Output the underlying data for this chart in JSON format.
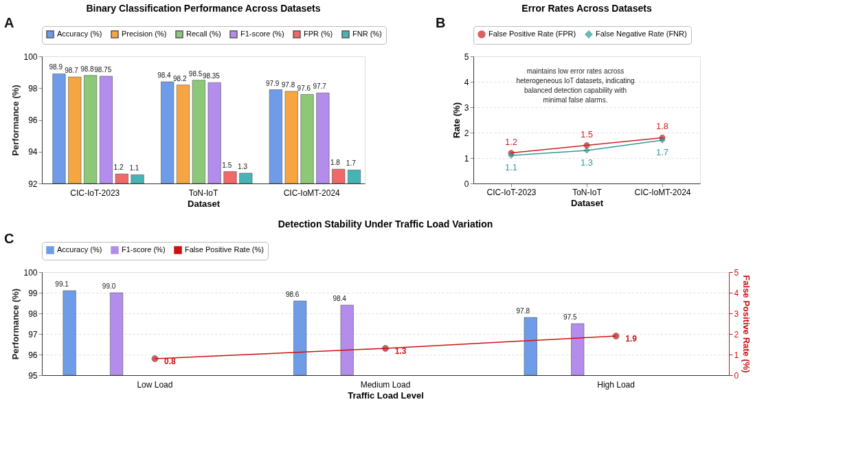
{
  "chart_data": [
    {
      "type": "bar",
      "title": "Binary Classification Performance Across Datasets",
      "xlabel": "Dataset",
      "ylabel": "Performance (%)",
      "annotations": [
        "A"
      ],
      "categories": [
        "CIC-IoT-2023",
        "ToN-IoT",
        "CIC-IoMT-2024"
      ],
      "series": [
        {
          "name": "Accuracy (%)",
          "color": "#6f9ce8",
          "values": [
            98.9,
            98.4,
            97.9
          ]
        },
        {
          "name": "Precision (%)",
          "color": "#f6a640",
          "values": [
            98.7,
            98.2,
            97.8
          ]
        },
        {
          "name": "Recall (%)",
          "color": "#8cc878",
          "values": [
            98.8,
            98.5,
            97.6
          ]
        },
        {
          "name": "F1-score (%)",
          "color": "#b48cec",
          "values": [
            98.75,
            98.35,
            97.7
          ]
        },
        {
          "name": "FPR (%)",
          "color": "#f06868",
          "values": [
            1.2,
            1.5,
            1.8
          ],
          "axis": "y2"
        },
        {
          "name": "FNR (%)",
          "color": "#45b4b4",
          "values": [
            1.1,
            1.3,
            1.7
          ],
          "axis": "y2"
        }
      ],
      "ylim": [
        92,
        100
      ],
      "yticks": [
        92,
        94,
        96,
        98,
        100
      ],
      "y2lim": [
        0,
        16
      ],
      "data_labels": true,
      "legend": "top",
      "grid": false
    },
    {
      "type": "line",
      "title": "Error Rates Across Datasets",
      "xlabel": "Dataset",
      "ylabel": "Rate (%)",
      "annotations": [
        "B",
        "maintains low error rates across heterogeneous IoT datasets, indicating balanced detection capability with minimal false alarms."
      ],
      "categories": [
        "CIC-IoT-2023",
        "ToN-IoT",
        "CIC-IoMT-2024"
      ],
      "series": [
        {
          "name": "False Positive Rate (FPR)",
          "color": "#cc1f1f",
          "marker": "circle",
          "values": [
            1.2,
            1.5,
            1.8
          ]
        },
        {
          "name": "False Negative Rate (FNR)",
          "color": "#2a9d9a",
          "marker": "diamond",
          "values": [
            1.1,
            1.3,
            1.7
          ]
        }
      ],
      "ylim": [
        0,
        5
      ],
      "yticks": [
        0,
        1,
        2,
        3,
        4,
        5
      ],
      "data_labels": true,
      "legend": "top",
      "grid": "y",
      "line_style": "solid"
    },
    {
      "type": "bar",
      "title": "Detection Stability Under Traffic Load Variation",
      "xlabel": "Traffic Load Level",
      "ylabel": "Performance (%)",
      "y2label": "False Positive Rate (%)",
      "annotations": [
        "C"
      ],
      "categories": [
        "Low Load",
        "Medium Load",
        "High Load"
      ],
      "series": [
        {
          "name": "Accuracy (%)",
          "color": "#6f9ce8",
          "values": [
            99.1,
            98.6,
            97.8
          ]
        },
        {
          "name": "F1-score (%)",
          "color": "#b48cec",
          "values": [
            99.0,
            98.4,
            97.5
          ],
          "value_labels": [
            "99.0",
            "98.4",
            "97.5"
          ]
        },
        {
          "name": "False Positive Rate (%)",
          "color": "#cc1111",
          "type": "line",
          "marker": "circle",
          "axis": "y2",
          "values": [
            0.8,
            1.3,
            1.9
          ]
        }
      ],
      "ylim": [
        95,
        100
      ],
      "yticks": [
        95,
        96,
        97,
        98,
        99,
        100
      ],
      "y2lim": [
        0,
        5
      ],
      "y2ticks": [
        0,
        1,
        2,
        3,
        4,
        5
      ],
      "data_labels": true,
      "legend": "top",
      "grid": "y"
    }
  ]
}
